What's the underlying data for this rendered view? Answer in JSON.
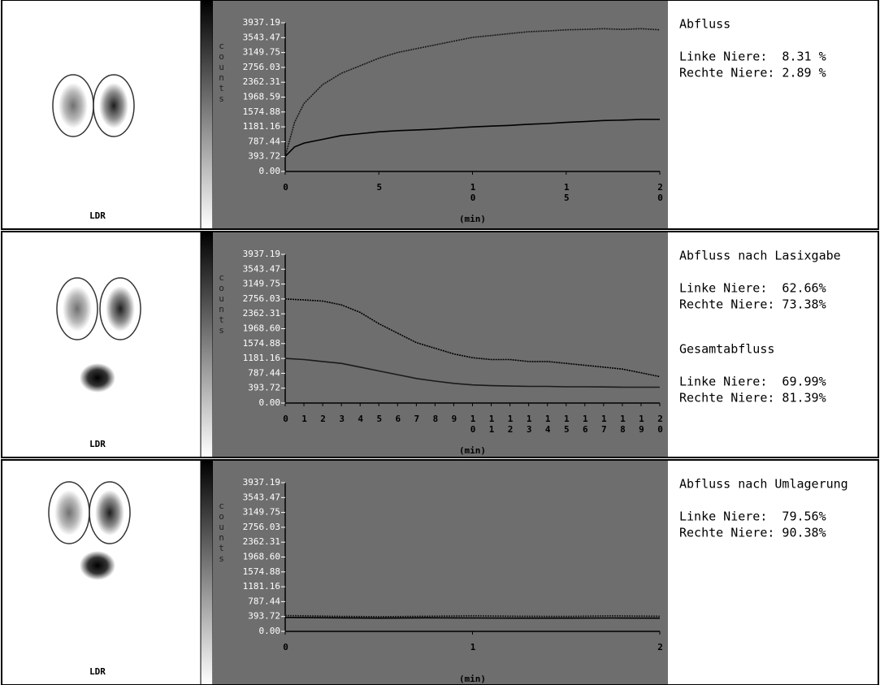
{
  "chart_data": [
    {
      "type": "line",
      "ylabel": "counts",
      "xlabel": "(min)",
      "x": [
        0,
        0.5,
        1,
        2,
        3,
        4,
        5,
        6,
        7,
        8,
        9,
        10,
        11,
        12,
        13,
        14,
        15,
        16,
        17,
        18,
        19,
        20
      ],
      "series": [
        {
          "color": "#1a1a1a",
          "values": [
            400,
            1300,
            1800,
            2300,
            2600,
            2800,
            3000,
            3150,
            3250,
            3350,
            3450,
            3550,
            3600,
            3650,
            3700,
            3720,
            3750,
            3760,
            3780,
            3760,
            3780,
            3750
          ]
        },
        {
          "color": "#000000",
          "values": [
            400,
            650,
            750,
            850,
            950,
            1000,
            1050,
            1080,
            1100,
            1120,
            1150,
            1180,
            1200,
            1220,
            1250,
            1270,
            1300,
            1320,
            1350,
            1360,
            1380,
            1380
          ]
        }
      ],
      "xlim": [
        0,
        20
      ],
      "xticks": [
        0,
        5,
        10,
        15,
        20
      ],
      "ylim": [
        0,
        3937.19
      ],
      "yticks": [
        {
          "value": 0,
          "label": "0.00"
        },
        393.72,
        787.44,
        1181.16,
        1574.88,
        1968.59,
        2362.31,
        2756.03,
        3149.75,
        3543.47,
        3937.19
      ]
    },
    {
      "type": "line",
      "ylabel": "counts",
      "xlabel": "(min)",
      "x": [
        0,
        1,
        2,
        3,
        4,
        5,
        6,
        7,
        8,
        9,
        10,
        11,
        12,
        13,
        14,
        15,
        16,
        17,
        18,
        19,
        20
      ],
      "series": [
        {
          "color": "#000000",
          "values": [
            2756,
            2730,
            2700,
            2600,
            2400,
            2100,
            1850,
            1600,
            1450,
            1300,
            1200,
            1150,
            1150,
            1100,
            1100,
            1050,
            1000,
            950,
            900,
            800,
            700
          ]
        },
        {
          "color": "#1a1a1a",
          "values": [
            1181,
            1150,
            1100,
            1050,
            950,
            850,
            750,
            650,
            580,
            520,
            480,
            460,
            450,
            440,
            440,
            430,
            430,
            425,
            420,
            420,
            420
          ]
        }
      ],
      "xlim": [
        0,
        20
      ],
      "xticks": [
        0,
        1,
        2,
        3,
        4,
        5,
        6,
        7,
        8,
        9,
        10,
        11,
        12,
        13,
        14,
        15,
        16,
        17,
        18,
        19,
        20
      ],
      "ylim": [
        0,
        3937.19
      ],
      "yticks": [
        {
          "value": 0,
          "label": "0.00"
        },
        393.72,
        787.44,
        1181.16,
        1574.88,
        {
          "value": 1968.6,
          "label": "1968.60"
        },
        2362.31,
        2756.03,
        3149.75,
        3543.47,
        3937.19
      ]
    },
    {
      "type": "line",
      "ylabel": "counts",
      "xlabel": "(min)",
      "x": [
        0,
        0.25,
        0.5,
        0.75,
        1,
        1.25,
        1.5,
        1.75,
        2
      ],
      "series": [
        {
          "color": "#1a1a1a",
          "values": [
            420,
            400,
            390,
            400,
            410,
            400,
            395,
            410,
            400
          ]
        },
        {
          "color": "#000000",
          "values": [
            370,
            360,
            350,
            360,
            355,
            350,
            350,
            355,
            350
          ]
        }
      ],
      "xlim": [
        0,
        2
      ],
      "xticks": [
        0,
        1,
        2
      ],
      "ylim": [
        0,
        3937.19
      ],
      "yticks": [
        {
          "value": 0,
          "label": "0.00"
        },
        393.72,
        787.44,
        1181.16,
        1574.88,
        {
          "value": 1968.6,
          "label": "1968.60"
        },
        2362.31,
        2756.03,
        3149.75,
        3543.47,
        3937.19
      ]
    }
  ],
  "panels": [
    {
      "image_label": "LDR",
      "report": [
        {
          "heading": "Abfluss",
          "lines": [
            "Linke Niere:  8.31 %",
            "Rechte Niere: 2.89 %"
          ]
        }
      ]
    },
    {
      "image_label": "LDR",
      "report": [
        {
          "heading": "Abfluss nach Lasixgabe",
          "lines": [
            "Linke Niere:  62.66%",
            "Rechte Niere: 73.38%"
          ]
        },
        {
          "heading": "Gesamtabfluss",
          "lines": [
            "Linke Niere:  69.99%",
            "Rechte Niere: 81.39%"
          ]
        }
      ]
    },
    {
      "image_label": "LDR",
      "report": [
        {
          "heading": "Abfluss nach Umlagerung",
          "lines": [
            "Linke Niere:  79.56%",
            "Rechte Niere: 90.38%"
          ]
        }
      ]
    }
  ]
}
